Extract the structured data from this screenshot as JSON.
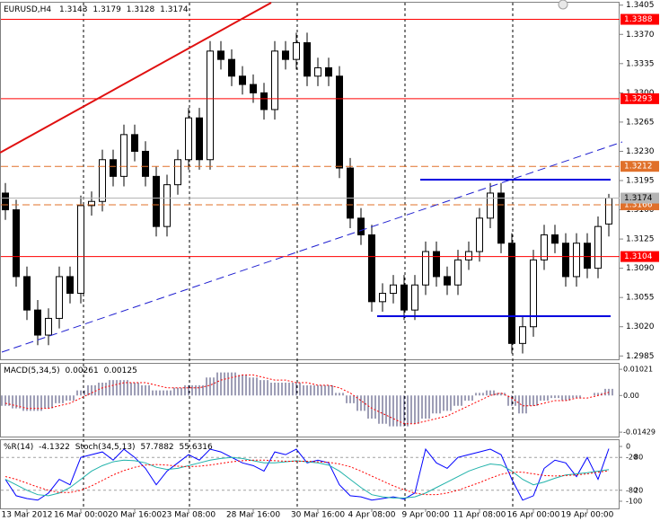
{
  "chart_data": [
    {
      "type": "candlestick",
      "title": "EURUSD,H4",
      "categories": [
        null,
        null,
        "13 Mar 2012",
        null,
        null,
        null,
        null,
        "16 Mar 00:00",
        null,
        null,
        null,
        null,
        "20 Mar 16:00",
        null,
        null,
        null,
        null,
        "23 Mar 08:00",
        null,
        null,
        null,
        null,
        null,
        "28 Mar 16:00",
        null,
        null,
        null,
        null,
        null,
        "30 Mar 16:00",
        null,
        null,
        null,
        null,
        "4 Apr 08:00",
        null,
        null,
        null,
        null,
        "9 Apr 00:00",
        null,
        null,
        null,
        null,
        "11 Apr 08:00",
        null,
        null,
        null,
        null,
        "16 Apr 00:00",
        null,
        null,
        null,
        null,
        "19 Apr 00:00",
        null,
        null
      ],
      "open": [
        1.318,
        1.316,
        1.308,
        1.304,
        1.301,
        1.303,
        1.308,
        1.306,
        1.3165,
        1.317,
        1.322,
        1.32,
        1.325,
        1.323,
        1.32,
        1.314,
        1.319,
        1.322,
        1.327,
        1.322,
        1.335,
        1.334,
        1.332,
        1.331,
        1.33,
        1.328,
        1.335,
        1.334,
        1.336,
        1.332,
        1.333,
        1.332,
        1.321,
        1.315,
        1.313,
        1.305,
        1.306,
        1.307,
        1.304,
        1.307,
        1.311,
        1.308,
        1.307,
        1.31,
        1.311,
        1.315,
        1.318,
        1.312,
        1.3,
        1.302,
        1.31,
        1.313,
        1.312,
        1.308,
        1.312,
        1.309,
        1.3143
      ],
      "high": [
        1.3192,
        1.3172,
        1.3092,
        1.3052,
        1.3042,
        1.3092,
        1.3092,
        1.3177,
        1.3182,
        1.3232,
        1.3232,
        1.3262,
        1.3262,
        1.3242,
        1.3212,
        1.3202,
        1.3232,
        1.3282,
        1.3282,
        1.3362,
        1.3362,
        1.3352,
        1.3332,
        1.3322,
        1.3312,
        1.3362,
        1.3362,
        1.3372,
        1.3372,
        1.3342,
        1.3342,
        1.3332,
        1.3222,
        1.3162,
        1.3142,
        1.3072,
        1.3082,
        1.3082,
        1.3082,
        1.3122,
        1.3122,
        1.3092,
        1.3112,
        1.3122,
        1.3162,
        1.3192,
        1.3192,
        1.3132,
        1.3032,
        1.3112,
        1.3142,
        1.3142,
        1.3132,
        1.3132,
        1.3132,
        1.3152,
        1.3179
      ],
      "low": [
        1.3148,
        1.3068,
        1.3028,
        1.2998,
        1.2998,
        1.3018,
        1.3048,
        1.3048,
        1.3153,
        1.3158,
        1.3188,
        1.3188,
        1.3218,
        1.3188,
        1.3128,
        1.3128,
        1.3178,
        1.3208,
        1.3208,
        1.3208,
        1.3328,
        1.3308,
        1.3298,
        1.3288,
        1.3268,
        1.3268,
        1.3328,
        1.3328,
        1.3308,
        1.3308,
        1.3308,
        1.3198,
        1.3138,
        1.3118,
        1.3038,
        1.3038,
        1.3048,
        1.3028,
        1.3028,
        1.3058,
        1.3068,
        1.3058,
        1.3058,
        1.3088,
        1.3098,
        1.3138,
        1.3108,
        1.2988,
        1.2988,
        1.3008,
        1.3088,
        1.3108,
        1.3068,
        1.3068,
        1.3078,
        1.3078,
        1.3128
      ],
      "close": [
        1.316,
        1.308,
        1.304,
        1.301,
        1.303,
        1.308,
        1.306,
        1.3165,
        1.317,
        1.322,
        1.32,
        1.325,
        1.323,
        1.32,
        1.314,
        1.319,
        1.322,
        1.327,
        1.322,
        1.335,
        1.334,
        1.332,
        1.331,
        1.33,
        1.328,
        1.335,
        1.334,
        1.336,
        1.332,
        1.333,
        1.332,
        1.321,
        1.315,
        1.313,
        1.305,
        1.306,
        1.307,
        1.304,
        1.307,
        1.311,
        1.308,
        1.307,
        1.31,
        1.311,
        1.315,
        1.318,
        1.312,
        1.3,
        1.302,
        1.31,
        1.313,
        1.312,
        1.308,
        1.312,
        1.309,
        1.314,
        1.3174
      ],
      "up_color": "#ffffff",
      "down_color": "#000000",
      "color": "#000000",
      "ylim": [
        1.2981,
        1.3409
      ],
      "yticks": [
        1.3405,
        {
          "value": 1.337,
          "label": "1.3370"
        },
        1.3335,
        {
          "value": 1.33,
          "label": "1.3300"
        },
        1.3265,
        {
          "value": 1.323,
          "label": "1.3230"
        },
        1.3195,
        {
          "value": 1.316,
          "label": "1.3160"
        },
        1.3125,
        {
          "value": 1.309,
          "label": "1.3090"
        },
        1.3055,
        {
          "value": 1.302,
          "label": "1.3020"
        },
        1.2985
      ],
      "levels": [
        {
          "value": 1.3388,
          "color": "#ff0000",
          "style": "solid"
        },
        {
          "value": 1.3293,
          "color": "#ff0000",
          "style": "solid"
        },
        {
          "value": 1.3212,
          "color": "#e0702a",
          "style": "dashed"
        },
        {
          "value": 1.3166,
          "color": "#e0702a",
          "style": "dashed"
        },
        {
          "value": 1.3104,
          "color": "#ff0000",
          "style": "solid"
        }
      ],
      "price_line_color": "#b4b4b4"
    },
    {
      "type": "macd",
      "title": "MACD(5,34,5)",
      "series": [
        {
          "color": "#3c3c6e",
          "style": "histogram",
          "values": [
            -0.004,
            -0.005,
            -0.006,
            -0.006,
            -0.005,
            -0.003,
            -0.002,
            0.002,
            0.004,
            0.005,
            0.006,
            0.006,
            0.005,
            0.004,
            0.002,
            0.002,
            0.003,
            0.004,
            0.004,
            0.007,
            0.009,
            0.009,
            0.008,
            0.007,
            0.006,
            0.005,
            0.005,
            0.005,
            0.004,
            0.004,
            0.004,
            0.001,
            -0.003,
            -0.006,
            -0.009,
            -0.011,
            -0.012,
            -0.012,
            -0.011,
            -0.009,
            -0.007,
            -0.006,
            -0.004,
            -0.002,
            0.001,
            0.002,
            0.001,
            -0.004,
            -0.007,
            -0.004,
            -0.002,
            -0.001,
            -0.002,
            -0.001,
            0.0,
            0.001,
            0.00261
          ]
        },
        {
          "color": "#ff0000",
          "style": "dotted",
          "values": [
            -0.003,
            -0.004,
            -0.005,
            -0.005,
            -0.005,
            -0.004,
            -0.003,
            -0.001,
            0.001,
            0.003,
            0.004,
            0.005,
            0.005,
            0.005,
            0.004,
            0.003,
            0.003,
            0.003,
            0.003,
            0.004,
            0.006,
            0.007,
            0.008,
            0.008,
            0.007,
            0.006,
            0.006,
            0.005,
            0.005,
            0.004,
            0.004,
            0.003,
            0.001,
            -0.002,
            -0.005,
            -0.007,
            -0.009,
            -0.011,
            -0.011,
            -0.01,
            -0.009,
            -0.008,
            -0.006,
            -0.004,
            -0.002,
            0.0,
            0.001,
            -0.001,
            -0.004,
            -0.004,
            -0.003,
            -0.002,
            -0.002,
            -0.001,
            -0.001,
            0.0,
            0.00125
          ]
        }
      ],
      "ylim": [
        -0.016,
        0.0127
      ],
      "yticks": [
        0.01021,
        {
          "value": 0,
          "label": "0.00"
        },
        -0.01429
      ]
    },
    {
      "type": "oscillator",
      "series": [
        {
          "name": "%R(14)",
          "color": "#0000ff",
          "style": "solid",
          "values": [
            -60,
            -90,
            -95,
            -98,
            -85,
            -60,
            -70,
            -20,
            -15,
            -10,
            -25,
            -5,
            -20,
            -40,
            -70,
            -45,
            -30,
            -15,
            -25,
            -5,
            -10,
            -20,
            -30,
            -35,
            -45,
            -10,
            -15,
            -5,
            -30,
            -25,
            -30,
            -70,
            -90,
            -92,
            -98,
            -95,
            -92,
            -96,
            -85,
            -5,
            -30,
            -40,
            -20,
            -15,
            -10,
            -5,
            -15,
            -60,
            -98,
            -90,
            -40,
            -25,
            -30,
            -55,
            -20,
            -60,
            -4.1322
          ]
        },
        {
          "name": "Stoch(34,5,13)",
          "color": "#20b2aa",
          "style": "solid",
          "axis": "y2",
          "values": [
            40,
            30,
            20,
            12,
            10,
            15,
            25,
            40,
            55,
            65,
            72,
            75,
            74,
            70,
            62,
            58,
            60,
            65,
            70,
            75,
            78,
            80,
            78,
            74,
            70,
            70,
            72,
            74,
            72,
            70,
            66,
            55,
            40,
            25,
            12,
            8,
            6,
            6,
            8,
            15,
            25,
            35,
            45,
            55,
            62,
            68,
            66,
            55,
            40,
            30,
            35,
            42,
            48,
            50,
            52,
            55,
            57.7882
          ]
        },
        {
          "color": "#ff0000",
          "style": "dotted",
          "axis": "y2",
          "values": [
            45,
            40,
            33,
            26,
            20,
            16,
            16,
            20,
            28,
            38,
            48,
            56,
            62,
            66,
            67,
            66,
            64,
            63,
            64,
            66,
            69,
            72,
            74,
            75,
            75,
            74,
            73,
            73,
            73,
            72,
            71,
            68,
            63,
            55,
            46,
            37,
            28,
            21,
            15,
            12,
            12,
            15,
            20,
            27,
            34,
            42,
            49,
            53,
            53,
            50,
            47,
            46,
            47,
            48,
            50,
            53,
            55.6316
          ]
        }
      ],
      "ylim": [
        -113.1,
        13.1
      ],
      "yticks": [
        0,
        -20,
        -80,
        -100
      ],
      "y2lim": [
        -13.1,
        113.1
      ],
      "y2ticks": [
        80,
        20
      ]
    }
  ]
}
